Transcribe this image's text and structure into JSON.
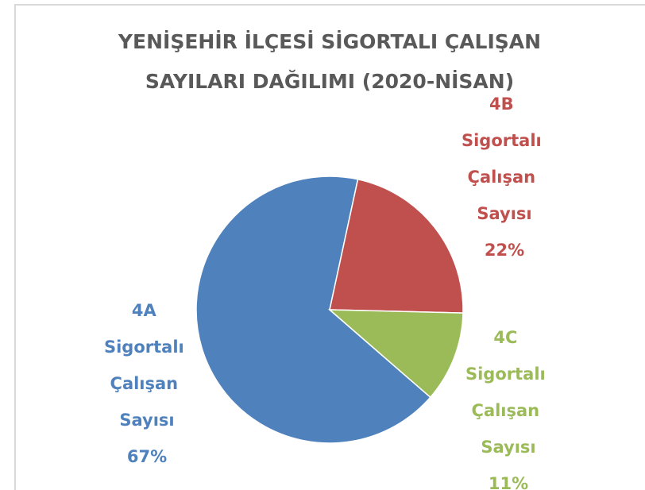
{
  "chart_data": {
    "type": "pie",
    "title": "YENİŞEHİR İLÇESİ SİGORTALI ÇALIŞAN SAYILARI DAĞILIMI (2020-NİSAN)",
    "categories": [
      "4A Sigortalı Çalışan Sayısı",
      "4B Sigortalı Çalışan Sayısı",
      "4C Sigortalı Çalışan Sayısı"
    ],
    "values": [
      67,
      22,
      11
    ],
    "value_labels": [
      "67%",
      "22%",
      "11%"
    ],
    "colors": [
      "#4f81bd",
      "#c0504d",
      "#9bbb59"
    ]
  }
}
